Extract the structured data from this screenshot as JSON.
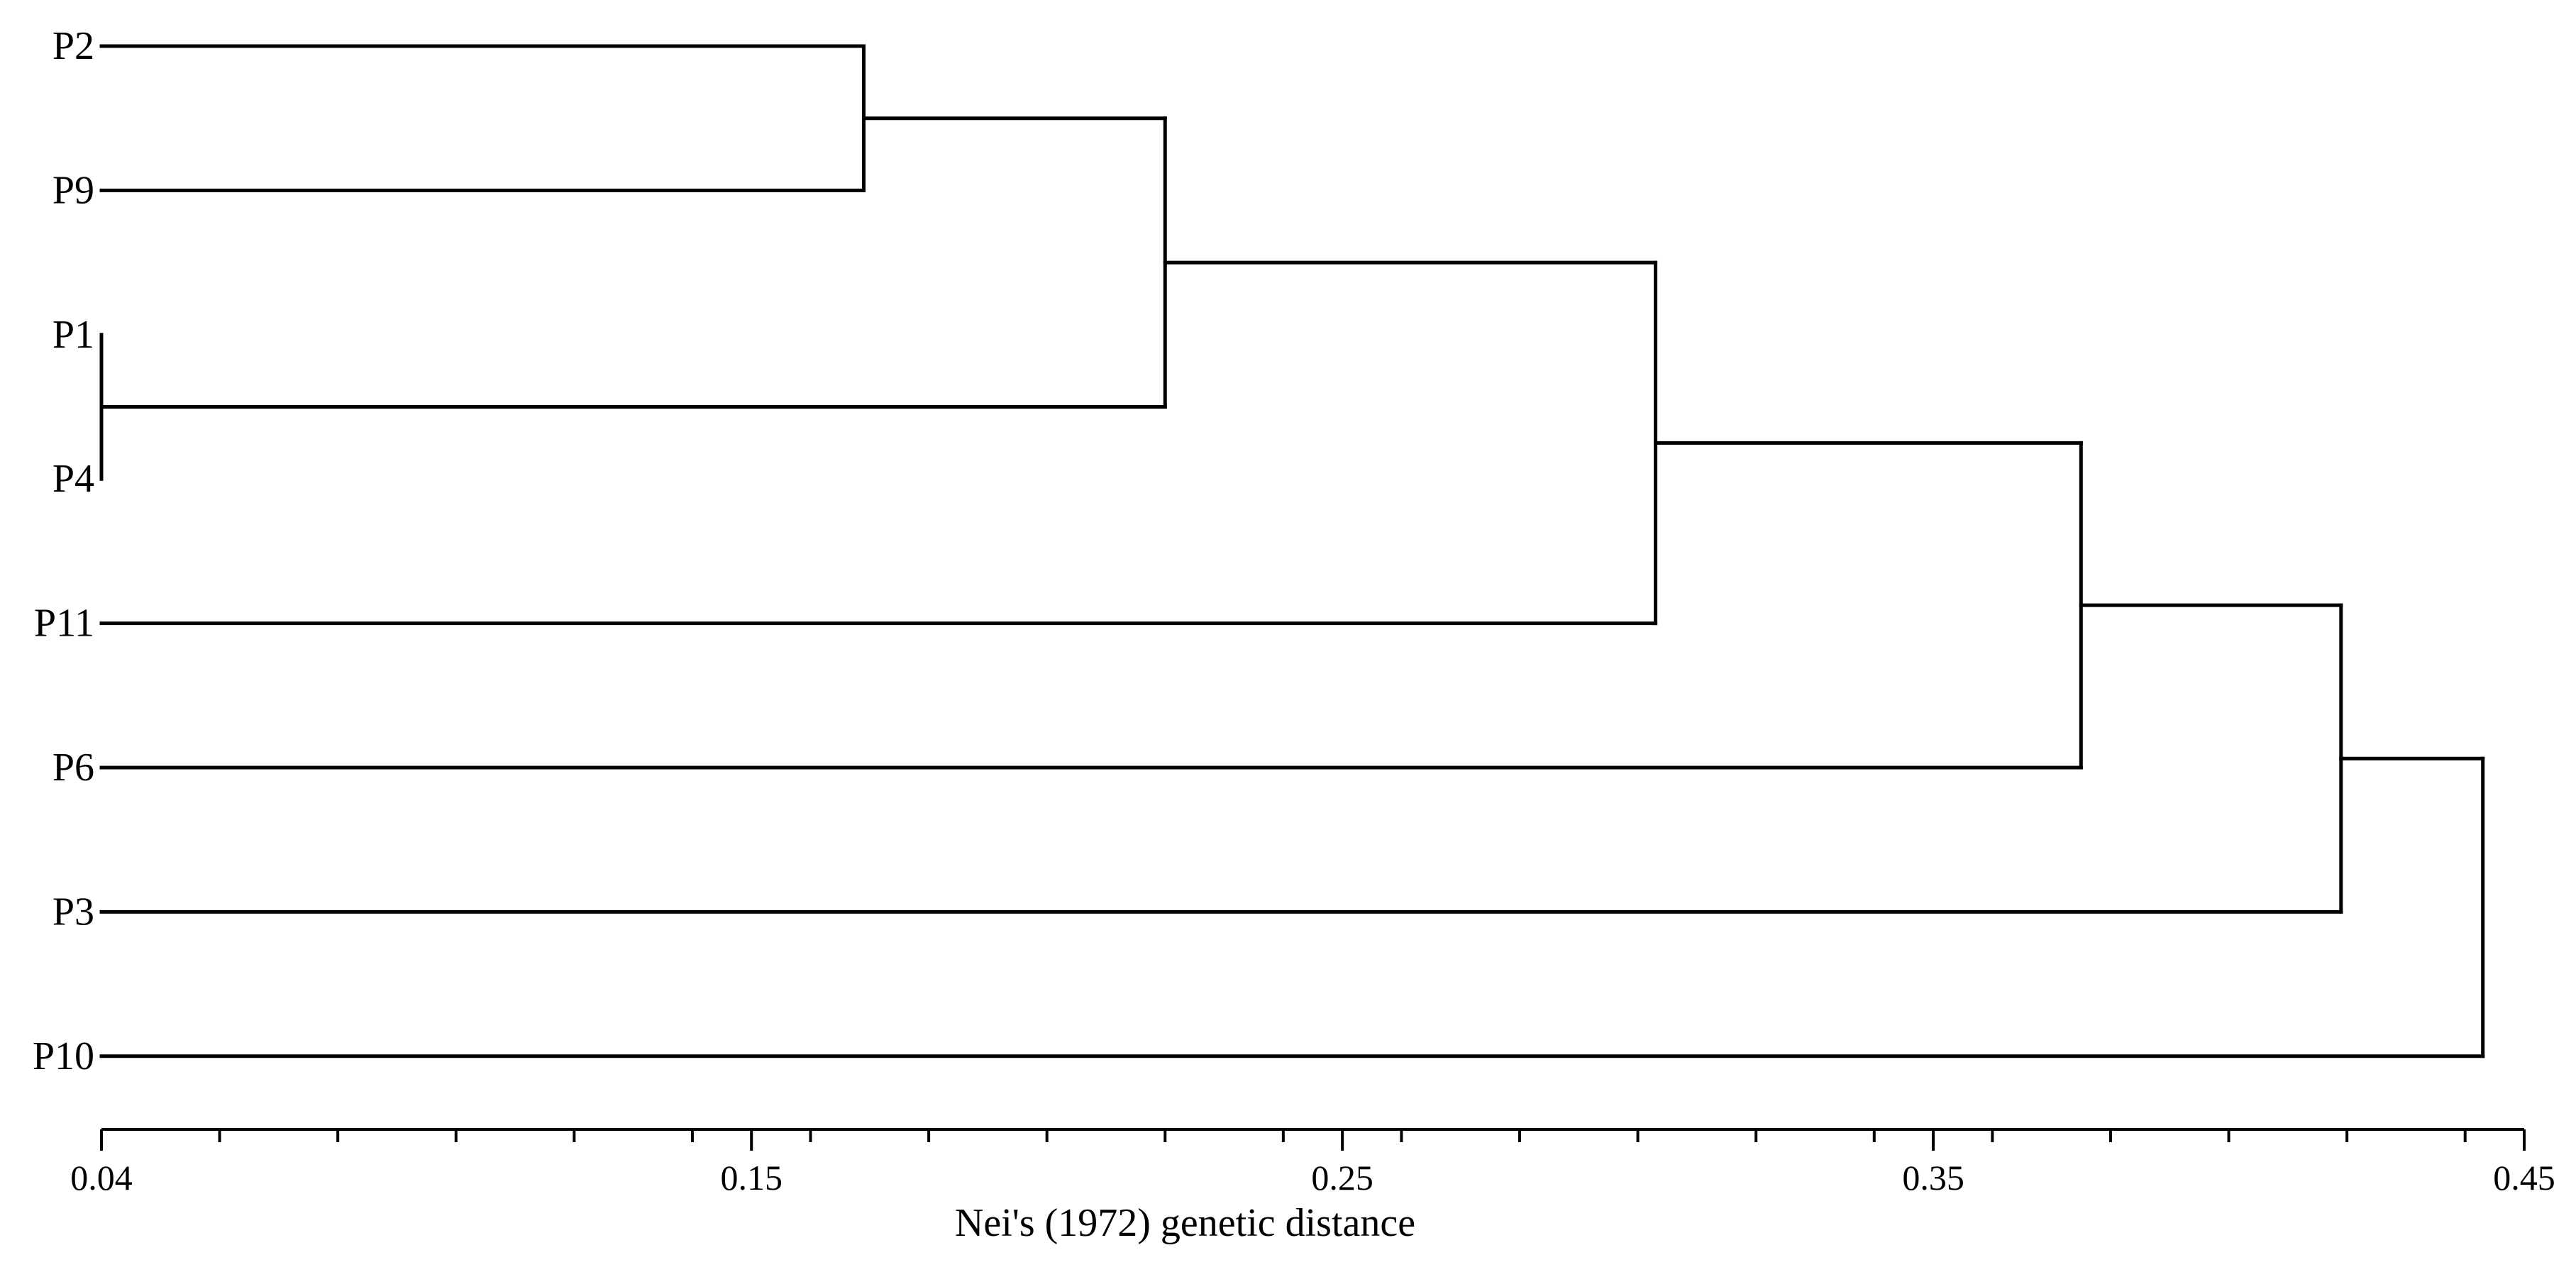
{
  "chart_data": {
    "type": "dendrogram",
    "xlabel": "Nei's (1972) genetic distance",
    "xlim": [
      0.04,
      0.45
    ],
    "x_ticks": [
      0.04,
      0.15,
      0.25,
      0.35,
      0.45
    ],
    "x_tick_labels": [
      "0.04",
      "0.15",
      "0.25",
      "0.35",
      "0.45"
    ],
    "minor_tick_step": 0.02,
    "leaves": [
      "P2",
      "P9",
      "P1",
      "P4",
      "P11",
      "P6",
      "P3",
      "P10"
    ],
    "merges": [
      {
        "children": [
          "P1",
          "P4"
        ],
        "distance": 0.04
      },
      {
        "children": [
          "P2",
          "P9"
        ],
        "distance": 0.169
      },
      {
        "children": [
          [
            "P2",
            "P9"
          ],
          [
            "P1",
            "P4"
          ]
        ],
        "distance": 0.22
      },
      {
        "children": [
          [
            "P2",
            "P9",
            "P1",
            "P4"
          ],
          "P11"
        ],
        "distance": 0.303
      },
      {
        "children": [
          [
            "P2",
            "P9",
            "P1",
            "P4",
            "P11"
          ],
          "P6"
        ],
        "distance": 0.375
      },
      {
        "children": [
          [
            "P2",
            "P9",
            "P1",
            "P4",
            "P11",
            "P6"
          ],
          "P3"
        ],
        "distance": 0.419
      },
      {
        "children": [
          [
            "P2",
            "P9",
            "P1",
            "P4",
            "P11",
            "P6",
            "P3"
          ],
          "P10"
        ],
        "distance": 0.443
      }
    ]
  }
}
